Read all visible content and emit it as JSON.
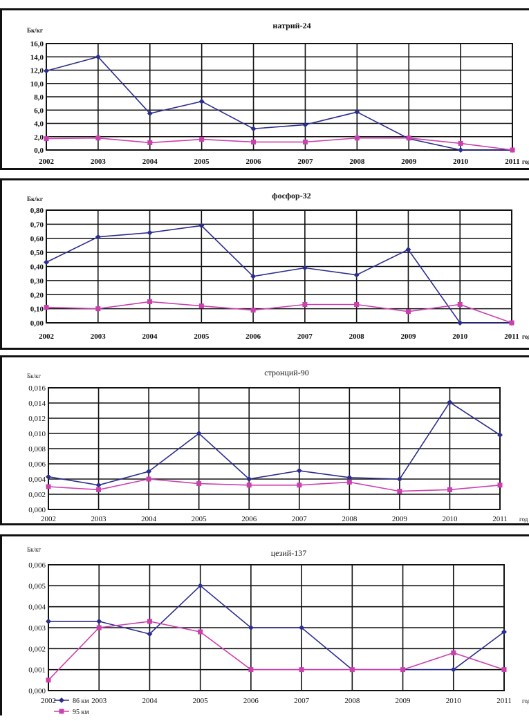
{
  "x_axis_suffix": "год",
  "legend": {
    "items": [
      {
        "label": "86 км",
        "color": "#2b2d8f",
        "marker": "diamond"
      },
      {
        "label": "95 км",
        "color": "#cc3fae",
        "marker": "square"
      }
    ]
  },
  "chart_data": [
    {
      "type": "line",
      "title": "натрий-24",
      "ylabel": "Бк/кг",
      "x": [
        "2002",
        "2003",
        "2004",
        "2005",
        "2006",
        "2007",
        "2008",
        "2009",
        "2010",
        "2011"
      ],
      "ylim": [
        0,
        16
      ],
      "ystep": 2,
      "y_tick_labels": [
        "0,0",
        "2,0",
        "4,0",
        "6,0",
        "8,0",
        "10,0",
        "12,0",
        "14,0",
        "16,0"
      ],
      "grid": true,
      "series": [
        {
          "name": "86 км",
          "color": "#2b2d8f",
          "values": [
            11.9,
            14.0,
            5.5,
            7.3,
            3.2,
            3.8,
            5.7,
            1.7,
            0.0,
            0.0
          ]
        },
        {
          "name": "95 км",
          "color": "#cc3fae",
          "values": [
            1.7,
            1.8,
            1.1,
            1.6,
            1.2,
            1.2,
            1.8,
            1.8,
            1.0,
            0.0
          ]
        }
      ]
    },
    {
      "type": "line",
      "title": "фосфор-32",
      "ylabel": "Бк/кг",
      "x": [
        "2002",
        "2003",
        "2004",
        "2005",
        "2006",
        "2007",
        "2008",
        "2009",
        "2010",
        "2011"
      ],
      "ylim": [
        0,
        0.8
      ],
      "ystep": 0.1,
      "y_tick_labels": [
        "0,00",
        "0,10",
        "0,20",
        "0,30",
        "0,40",
        "0,50",
        "0,60",
        "0,70",
        "0,80"
      ],
      "grid": true,
      "series": [
        {
          "name": "86 км",
          "color": "#2b2d8f",
          "values": [
            0.43,
            0.61,
            0.64,
            0.69,
            0.33,
            0.39,
            0.34,
            0.52,
            0.0,
            0.0
          ]
        },
        {
          "name": "95 км",
          "color": "#cc3fae",
          "values": [
            0.11,
            0.1,
            0.15,
            0.12,
            0.09,
            0.13,
            0.13,
            0.08,
            0.13,
            0.0
          ]
        }
      ]
    },
    {
      "type": "line",
      "title": "стронций-90",
      "ylabel": "Бк/кг",
      "x": [
        "2002",
        "2003",
        "2004",
        "2005",
        "2006",
        "2007",
        "2008",
        "2009",
        "2010",
        "2011"
      ],
      "ylim": [
        0,
        0.016
      ],
      "ystep": 0.002,
      "y_tick_labels": [
        "0,000",
        "0,002",
        "0,004",
        "0,006",
        "0,008",
        "0,010",
        "0,012",
        "0,014",
        "0,016"
      ],
      "grid": true,
      "series": [
        {
          "name": "86 км",
          "color": "#2b2d8f",
          "values": [
            0.0043,
            0.0032,
            0.005,
            0.01,
            0.004,
            0.0051,
            0.0042,
            0.004,
            0.0141,
            0.0098
          ]
        },
        {
          "name": "95 км",
          "color": "#cc3fae",
          "values": [
            0.003,
            0.0026,
            0.004,
            0.0034,
            0.0032,
            0.0032,
            0.0036,
            0.0024,
            0.0026,
            0.0032
          ]
        }
      ]
    },
    {
      "type": "line",
      "title": "цезий-137",
      "ylabel": "Бк/кг",
      "x": [
        "2002",
        "2003",
        "2004",
        "2005",
        "2006",
        "2007",
        "2008",
        "2009",
        "2010",
        "2011"
      ],
      "ylim": [
        0,
        0.006
      ],
      "ystep": 0.001,
      "y_tick_labels": [
        "0,000",
        "0,001",
        "0,002",
        "0,003",
        "0,004",
        "0,005",
        "0,006"
      ],
      "grid": true,
      "legend_position": "bottom-left",
      "series": [
        {
          "name": "86 км",
          "color": "#2b2d8f",
          "values": [
            0.0033,
            0.0033,
            0.0027,
            0.005,
            0.003,
            0.003,
            0.001,
            0.001,
            0.001,
            0.0028
          ]
        },
        {
          "name": "95 км",
          "color": "#cc3fae",
          "values": [
            0.0005,
            0.003,
            0.0033,
            0.0028,
            0.001,
            0.001,
            0.001,
            0.001,
            0.0018,
            0.001
          ]
        }
      ]
    }
  ]
}
